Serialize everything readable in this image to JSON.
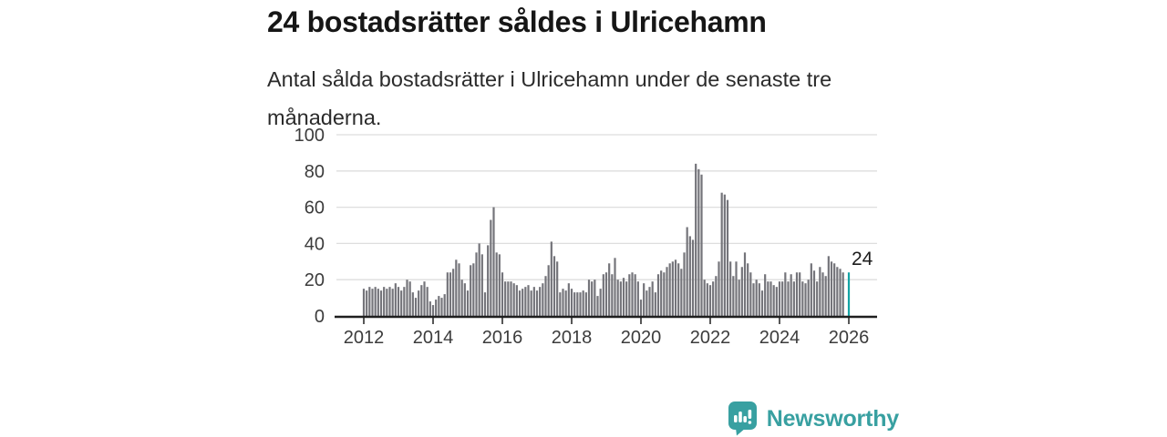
{
  "chart_data": {
    "type": "bar",
    "title": "24 bostadsrätter såldes i Ulricehamn",
    "subtitle": "Antal sålda bostadsrätter i Ulricehamn under de senaste tre månaderna.",
    "xlabel": "",
    "ylabel": "",
    "ylim": [
      0,
      100
    ],
    "yticks": [
      0,
      20,
      40,
      60,
      80,
      100
    ],
    "xticks": [
      2012,
      2014,
      2016,
      2018,
      2020,
      2022,
      2024,
      2026
    ],
    "grid": true,
    "legend": "none",
    "x_axis": {
      "start_year": 2012,
      "frequency": "monthly"
    },
    "values": [
      15,
      14,
      16,
      15,
      16,
      15,
      14,
      16,
      15,
      16,
      15,
      18,
      16,
      14,
      16,
      20,
      19,
      13,
      10,
      14,
      17,
      19,
      16,
      8,
      6,
      9,
      11,
      10,
      12,
      24,
      24,
      26,
      31,
      29,
      20,
      18,
      14,
      28,
      29,
      35,
      40,
      34,
      13,
      39,
      53,
      60,
      35,
      34,
      24,
      19,
      19,
      19,
      18,
      17,
      14,
      15,
      16,
      17,
      14,
      16,
      14,
      16,
      18,
      22,
      28,
      41,
      33,
      30,
      13,
      15,
      14,
      18,
      15,
      13,
      13,
      13,
      14,
      13,
      20,
      19,
      20,
      11,
      15,
      23,
      24,
      29,
      23,
      32,
      20,
      19,
      21,
      19,
      23,
      24,
      23,
      19,
      9,
      18,
      14,
      16,
      19,
      13,
      23,
      25,
      24,
      27,
      29,
      30,
      31,
      29,
      26,
      35,
      49,
      44,
      42,
      84,
      81,
      78,
      20,
      18,
      17,
      19,
      22,
      30,
      68,
      67,
      64,
      30,
      22,
      30,
      20,
      27,
      35,
      29,
      24,
      18,
      20,
      18,
      14,
      23,
      19,
      19,
      17,
      16,
      19,
      19,
      24,
      19,
      23,
      19,
      24,
      24,
      19,
      18,
      20,
      29,
      25,
      19,
      27,
      24,
      22,
      33,
      30,
      29,
      27,
      26,
      24,
      null,
      24
    ],
    "highlight": {
      "index": 168,
      "value": 24,
      "label": "24"
    }
  },
  "branding": {
    "logo_text": "Newsworthy"
  },
  "colors": {
    "background": "#ffffff",
    "bar": "#74747a",
    "accent": "#14a3a5",
    "grid": "#dedede",
    "axis_line": "#1f1f1f",
    "axis_text": "#3c3c3c",
    "title": "#161616",
    "subtitle": "#2b2b2b",
    "value_label": "#1c1c1c",
    "brand": "#38a0a1"
  }
}
